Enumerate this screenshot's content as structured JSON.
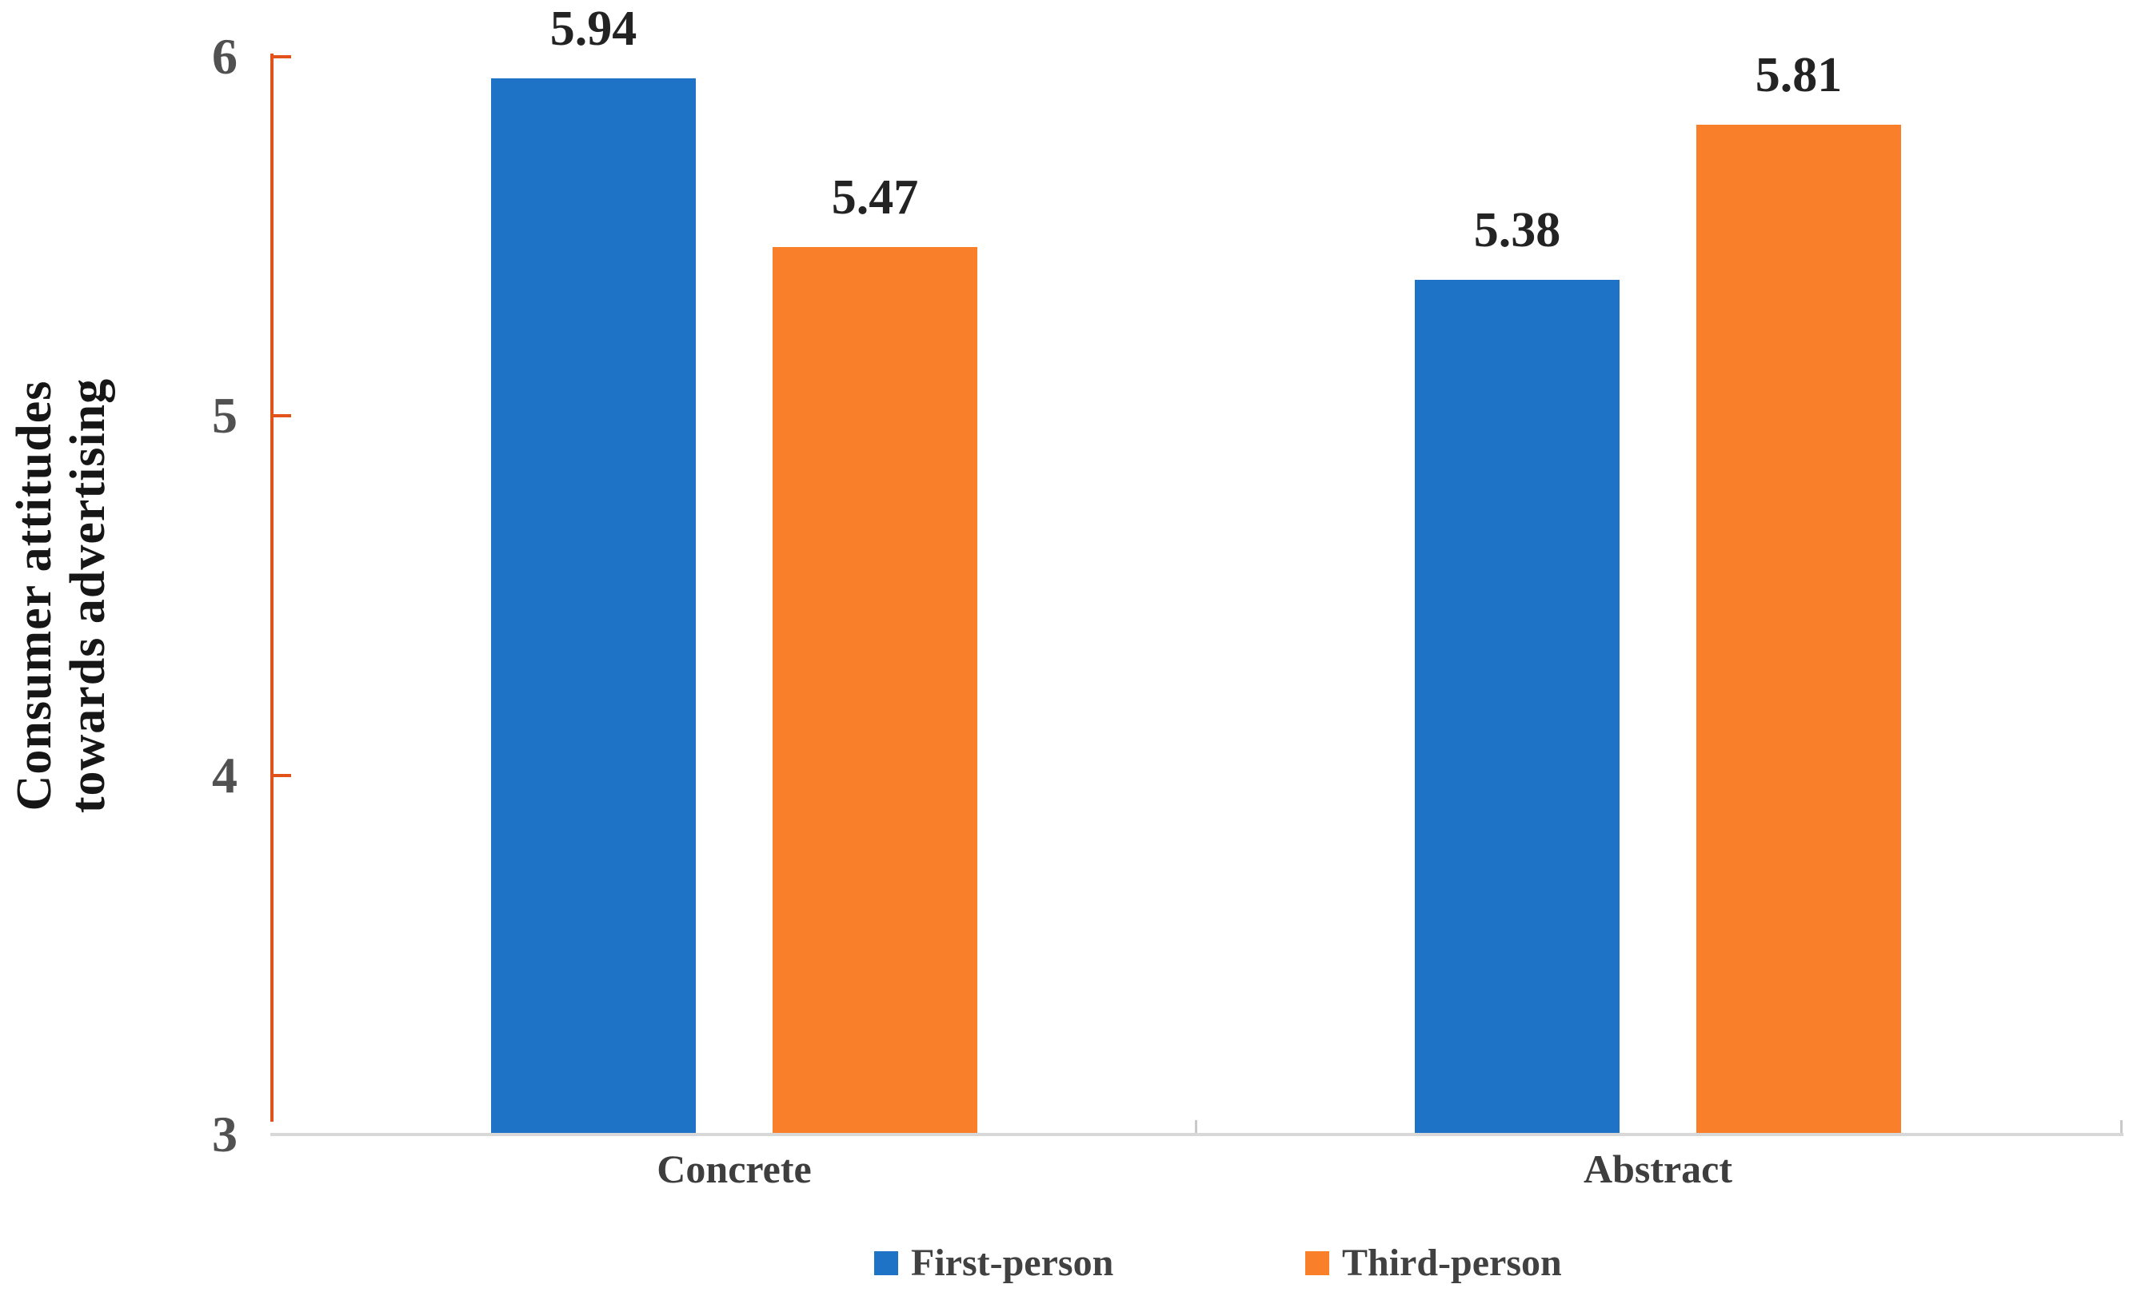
{
  "figure": {
    "background": "#ffffff"
  },
  "chart_data": {
    "type": "bar",
    "title": "",
    "categories": [
      "Concrete",
      "Abstract"
    ],
    "series": [
      {
        "name": "First-person",
        "color": "#1E73C6",
        "values": [
          5.94,
          5.38
        ],
        "labels": [
          "5.94",
          "5.38"
        ]
      },
      {
        "name": "Third-person",
        "color": "#F97F2B",
        "values": [
          5.47,
          5.81
        ],
        "labels": [
          "5.47",
          "5.81"
        ]
      }
    ],
    "ylabel": "Consumer attitudes towards advertising",
    "ylabel_lines": [
      "Consumer attitudes",
      "towards advertising"
    ],
    "yticks": [
      3,
      4,
      5,
      6
    ],
    "ytick_labels": [
      "3",
      "4",
      "5",
      "6"
    ],
    "ylim": [
      3,
      6
    ],
    "xlabel": "",
    "grid": false,
    "legend_position": "bottom",
    "data_labels_shown": true
  },
  "colors": {
    "axis_line": "#E2531C",
    "baseline": "#D8D8D8",
    "category_tick": "#C9C9C9",
    "tick_text": "#515151",
    "data_label_text": "#232323",
    "series_blue": "#1E73C6",
    "series_orange": "#F97F2B"
  }
}
